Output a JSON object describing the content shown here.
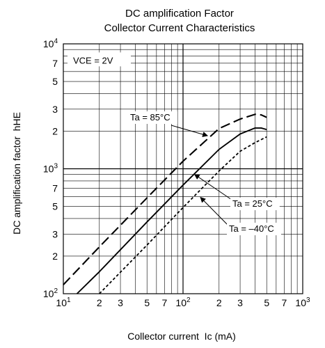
{
  "chart_data": {
    "type": "line",
    "title": [
      "DC amplification Factor",
      "Collector Current Characteristics"
    ],
    "xlabel": "Collector current  Ic (mA)",
    "ylabel": "DC amplification factor  hHE",
    "xscale": "log",
    "yscale": "log",
    "xlim": [
      10,
      1000
    ],
    "ylim": [
      100,
      10000
    ],
    "grid": true,
    "x_ticks": [
      {
        "value": 10,
        "base": "10",
        "exp": "1"
      },
      {
        "value": 20,
        "base": "2",
        "exp": ""
      },
      {
        "value": 30,
        "base": "3",
        "exp": ""
      },
      {
        "value": 50,
        "base": "5",
        "exp": ""
      },
      {
        "value": 70,
        "base": "7",
        "exp": ""
      },
      {
        "value": 100,
        "base": "10",
        "exp": "2"
      },
      {
        "value": 200,
        "base": "2",
        "exp": ""
      },
      {
        "value": 300,
        "base": "3",
        "exp": ""
      },
      {
        "value": 500,
        "base": "5",
        "exp": ""
      },
      {
        "value": 700,
        "base": "7",
        "exp": ""
      },
      {
        "value": 1000,
        "base": "10",
        "exp": "3"
      }
    ],
    "y_ticks": [
      {
        "value": 100,
        "base": "10",
        "exp": "2"
      },
      {
        "value": 200,
        "base": "2",
        "exp": ""
      },
      {
        "value": 300,
        "base": "3",
        "exp": ""
      },
      {
        "value": 500,
        "base": "5",
        "exp": ""
      },
      {
        "value": 700,
        "base": "7",
        "exp": ""
      },
      {
        "value": 1000,
        "base": "10",
        "exp": "3"
      },
      {
        "value": 2000,
        "base": "2",
        "exp": ""
      },
      {
        "value": 3000,
        "base": "3",
        "exp": ""
      },
      {
        "value": 5000,
        "base": "5",
        "exp": ""
      },
      {
        "value": 7000,
        "base": "7",
        "exp": ""
      },
      {
        "value": 10000,
        "base": "10",
        "exp": "4"
      }
    ],
    "condition": "VCE = 2V",
    "series": [
      {
        "name": "Ta = 85°C",
        "style": "dash-long",
        "points": [
          [
            10,
            118
          ],
          [
            20,
            237
          ],
          [
            50,
            585
          ],
          [
            100,
            1150
          ],
          [
            200,
            2100
          ],
          [
            300,
            2500
          ],
          [
            400,
            2730
          ],
          [
            450,
            2700
          ],
          [
            500,
            2580
          ]
        ]
      },
      {
        "name": "Ta = 25°C",
        "style": "solid",
        "points": [
          [
            13,
            100
          ],
          [
            20,
            150
          ],
          [
            50,
            375
          ],
          [
            100,
            740
          ],
          [
            200,
            1430
          ],
          [
            300,
            1900
          ],
          [
            400,
            2120
          ],
          [
            450,
            2120
          ],
          [
            500,
            2060
          ]
        ]
      },
      {
        "name": "Ta = -40°C",
        "style": "dash-short",
        "points": [
          [
            20,
            100
          ],
          [
            50,
            245
          ],
          [
            100,
            490
          ],
          [
            200,
            960
          ],
          [
            300,
            1380
          ],
          [
            400,
            1620
          ],
          [
            500,
            1800
          ]
        ]
      }
    ],
    "annotations": [
      {
        "text": "Ta = 85°C",
        "target": [
          160,
          1840
        ]
      },
      {
        "text": "Ta = 25°C",
        "target": [
          125,
          900
        ]
      },
      {
        "text": "Ta = –40°C",
        "target": [
          140,
          590
        ]
      }
    ]
  }
}
